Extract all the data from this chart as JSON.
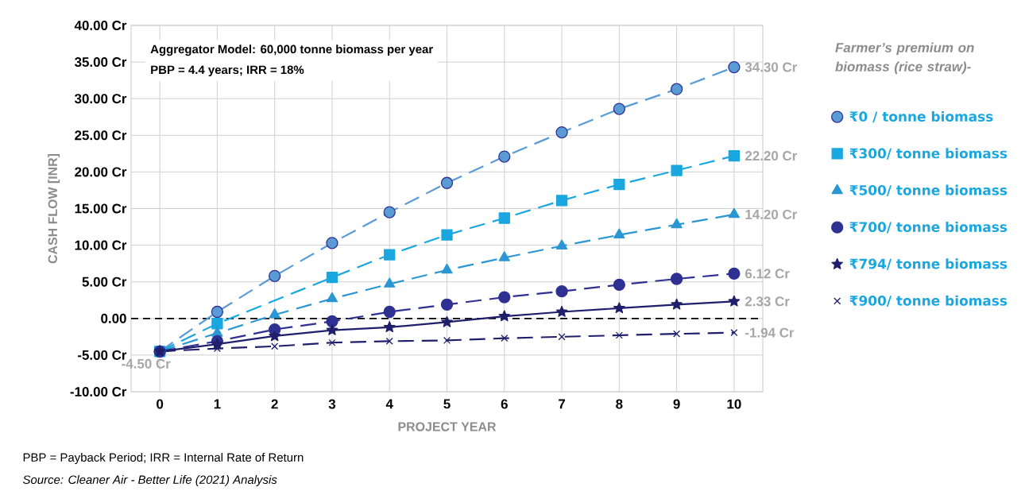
{
  "chart_data": {
    "type": "line",
    "xlabel": "PROJECT YEAR",
    "ylabel": "CASH FLOW [INR]",
    "legend_title": "Farmer’s premium on biomass (rice straw)-",
    "x": [
      0,
      1,
      2,
      3,
      4,
      5,
      6,
      7,
      8,
      9,
      10
    ],
    "xlim": [
      -0.5,
      10.5
    ],
    "xticks": [
      0,
      1,
      2,
      3,
      4,
      5,
      6,
      7,
      8,
      9,
      10
    ],
    "ylim": [
      -10,
      40
    ],
    "yticks": [
      {
        "value": -10,
        "label": "-10.00 Cr"
      },
      {
        "value": -5,
        "label": "-5.00 Cr"
      },
      {
        "value": 0,
        "label": "0.00"
      },
      {
        "value": 5,
        "label": "5.00 Cr"
      },
      {
        "value": 10,
        "label": "10.00 Cr"
      },
      {
        "value": 15,
        "label": "15.00 Cr"
      },
      {
        "value": 20,
        "label": "20.00 Cr"
      },
      {
        "value": 25,
        "label": "25.00 Cr"
      },
      {
        "value": 30,
        "label": "30.00 Cr"
      },
      {
        "value": 35,
        "label": "35.00 Cr"
      },
      {
        "value": 40,
        "label": "40.00 Cr"
      }
    ],
    "grid": true,
    "legend": "right",
    "series": [
      {
        "name": "₹0 / tonne biomass",
        "color": "#5b9bd5",
        "marker": "circle",
        "line_style": "dashed",
        "values": [
          -4.5,
          0.9,
          5.8,
          10.3,
          14.5,
          18.5,
          22.1,
          25.4,
          28.6,
          31.3,
          34.3
        ],
        "value_labels": [
          "-4.50 Cr",
          null,
          null,
          null,
          null,
          null,
          null,
          null,
          null,
          null,
          "34.30 Cr"
        ]
      },
      {
        "name": "₹300/ tonne biomass",
        "color": "#1aa7e0",
        "marker": "square",
        "line_style": "dashed",
        "values": [
          -4.5,
          -0.7,
          null,
          5.6,
          8.7,
          11.4,
          13.7,
          16.1,
          18.3,
          20.2,
          22.2
        ],
        "value_labels": [
          null,
          null,
          null,
          null,
          null,
          null,
          null,
          null,
          null,
          null,
          "22.20 Cr"
        ]
      },
      {
        "name": "₹500/ tonne biomass",
        "color": "#2a96d4",
        "marker": "triangle",
        "line_style": "dashed",
        "values": [
          -4.5,
          -2.0,
          0.5,
          2.7,
          4.7,
          6.6,
          8.3,
          9.9,
          11.4,
          12.8,
          14.2
        ],
        "value_labels": [
          null,
          null,
          null,
          null,
          null,
          null,
          null,
          null,
          null,
          null,
          "14.20 Cr"
        ]
      },
      {
        "name": "₹700/ tonne biomass",
        "color": "#2e3192",
        "marker": "circle",
        "line_style": "dashed",
        "values": [
          -4.5,
          -3.1,
          -1.5,
          -0.4,
          0.9,
          1.9,
          2.9,
          3.7,
          4.6,
          5.4,
          6.12
        ],
        "value_labels": [
          null,
          null,
          null,
          null,
          null,
          null,
          null,
          null,
          null,
          null,
          "6.12 Cr"
        ]
      },
      {
        "name": "₹794/ tonne biomass",
        "color": "#1f1f6b",
        "marker": "star",
        "line_style": "solid",
        "values": [
          -4.5,
          -3.5,
          -2.4,
          -1.6,
          -1.2,
          -0.5,
          0.3,
          0.9,
          1.4,
          1.9,
          2.33
        ],
        "value_labels": [
          null,
          null,
          null,
          null,
          null,
          null,
          null,
          null,
          null,
          null,
          "2.33 Cr"
        ]
      },
      {
        "name": "₹900/ tonne biomass",
        "color": "#1f1f6b",
        "marker": "cross",
        "line_style": "dashed",
        "values": [
          -4.5,
          -4.1,
          -3.8,
          -3.3,
          -3.1,
          -3.0,
          -2.7,
          -2.5,
          -2.3,
          -2.1,
          -1.94
        ],
        "value_labels": [
          null,
          null,
          null,
          null,
          null,
          null,
          null,
          null,
          null,
          null,
          "-1.94 Cr"
        ]
      }
    ],
    "ref_lines": [
      {
        "axis": "y",
        "value": 0,
        "color": "#000000",
        "line_style": "dashed"
      }
    ],
    "annotations": [
      "Aggregator Model: 60,000 tonne biomass per year",
      "PBP = 4.4 years; IRR = 18%",
      "PBP = Payback Period; IRR = Internal Rate of Return",
      "Source: Cleaner Air - Better Life (2021) Analysis"
    ]
  }
}
